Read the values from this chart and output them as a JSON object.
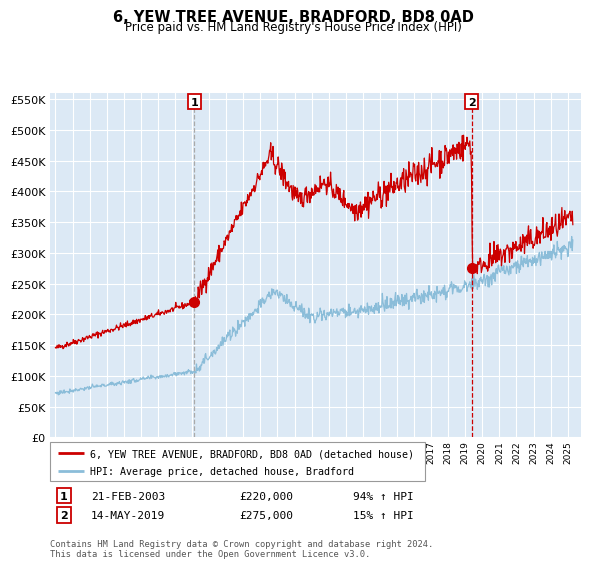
{
  "title": "6, YEW TREE AVENUE, BRADFORD, BD8 0AD",
  "subtitle": "Price paid vs. HM Land Registry's House Price Index (HPI)",
  "legend_line1": "6, YEW TREE AVENUE, BRADFORD, BD8 0AD (detached house)",
  "legend_line2": "HPI: Average price, detached house, Bradford",
  "transaction1_label": "1",
  "transaction1_date": "21-FEB-2003",
  "transaction1_price": 220000,
  "transaction1_hpi": "94% ↑ HPI",
  "transaction2_label": "2",
  "transaction2_date": "14-MAY-2019",
  "transaction2_price": 275000,
  "transaction2_hpi": "15% ↑ HPI",
  "transaction1_year": 2003.13,
  "transaction2_year": 2019.37,
  "ylim_max": 560000,
  "xlim_start": 1994.7,
  "xlim_end": 2025.8,
  "background_color": "#dce9f5",
  "red_line_color": "#cc0000",
  "blue_line_color": "#8bbdd9",
  "grid_color": "#ffffff",
  "vline1_color": "#aaaaaa",
  "vline2_color": "#cc0000",
  "footer_text": "Contains HM Land Registry data © Crown copyright and database right 2024.\nThis data is licensed under the Open Government Licence v3.0."
}
